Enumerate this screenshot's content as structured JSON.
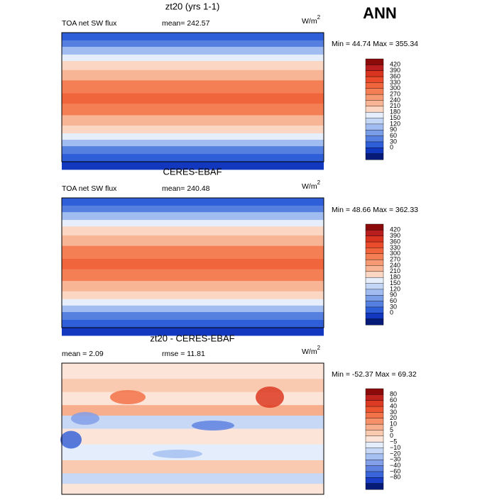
{
  "header": {
    "season": "ANN"
  },
  "panels": [
    {
      "title": "zt20 (yrs 1-1)",
      "left_label": "TOA net SW flux",
      "center_label": "mean=  242.57",
      "units": "W/m",
      "units_exponent": "2",
      "range": "Min =  44.74 Max = 355.34",
      "colorbar": {
        "levels": [
          "420",
          "390",
          "360",
          "330",
          "300",
          "270",
          "240",
          "210",
          "180",
          "150",
          "120",
          "90",
          "60",
          "30",
          "0"
        ],
        "colors": [
          "#8b0a0a",
          "#b81e1e",
          "#d8341f",
          "#e94b2b",
          "#f1653c",
          "#f47f55",
          "#f69a74",
          "#f8b595",
          "#fbd6c2",
          "#e6eefb",
          "#c4d6f6",
          "#a0bcf0",
          "#7a9de8",
          "#5580e0",
          "#2f5fd8",
          "#1238c0",
          "#061a78"
        ]
      }
    },
    {
      "title": "CERES-EBAF",
      "left_label": "TOA net SW flux",
      "center_label": "mean=  240.48",
      "units": "W/m",
      "units_exponent": "2",
      "range": "Min =  48.66 Max = 362.33",
      "colorbar": {
        "levels": [
          "420",
          "390",
          "360",
          "330",
          "300",
          "270",
          "240",
          "210",
          "180",
          "150",
          "120",
          "90",
          "60",
          "30",
          "0"
        ],
        "colors": [
          "#8b0a0a",
          "#b81e1e",
          "#d8341f",
          "#e94b2b",
          "#f1653c",
          "#f47f55",
          "#f69a74",
          "#f8b595",
          "#fbd6c2",
          "#e6eefb",
          "#c4d6f6",
          "#a0bcf0",
          "#7a9de8",
          "#5580e0",
          "#2f5fd8",
          "#1238c0",
          "#061a78"
        ]
      }
    },
    {
      "title": "zt20 - CERES-EBAF",
      "left_label": "mean =    2.09",
      "center_label": "rmse =   11.81",
      "units": "W/m",
      "units_exponent": "2",
      "range": "Min = -52.37 Max =  69.32",
      "colorbar": {
        "levels": [
          "80",
          "60",
          "40",
          "30",
          "20",
          "10",
          "5",
          "0",
          "−5",
          "−10",
          "−20",
          "−30",
          "−40",
          "−60",
          "−80"
        ],
        "colors": [
          "#8b0a0a",
          "#c0221e",
          "#dc3a22",
          "#ec5530",
          "#f27249",
          "#f59068",
          "#f7ae8c",
          "#f9cab0",
          "#fce5d8",
          "#e4edfb",
          "#c6d8f6",
          "#a6c0f1",
          "#839fe9",
          "#5f82e1",
          "#3a64d9",
          "#1a3fc6",
          "#061a78"
        ]
      }
    }
  ]
}
